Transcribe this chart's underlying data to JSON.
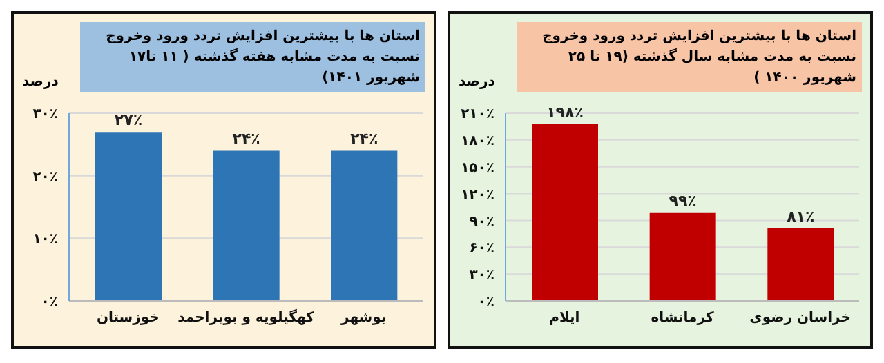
{
  "chart_data": [
    {
      "type": "bar",
      "title": "استان ها با بیشترین افزایش تردد ورود وخروج نسبت به مدت مشابه هفته گذشته ( ۱۱ تا۱۷ شهریور ۱۴۰۱)",
      "ylabel": "درصد",
      "categories": [
        "خوزستان",
        "کهگیلویه و بویراحمد",
        "بوشهر"
      ],
      "values": [
        27,
        24,
        24
      ],
      "value_labels": [
        "۲۷٪",
        "۲۴٪",
        "۲۴٪"
      ],
      "color": "#2e75b6",
      "ylim": [
        0,
        30
      ],
      "yticks": [
        {
          "value": 0,
          "label": "۰٪"
        },
        {
          "value": 10,
          "label": "۱۰٪"
        },
        {
          "value": 20,
          "label": "۲۰٪"
        },
        {
          "value": 30,
          "label": "۳۰٪"
        }
      ],
      "grid": "y"
    },
    {
      "type": "bar",
      "title": "استان ها با بیشترین افزایش تردد ورود وخروج نسبت به مدت مشابه سال گذشته (۱۹ تا ۲۵ شهریور ۱۴۰۰ )",
      "ylabel": "درصد",
      "categories": [
        "ایلام",
        "کرمانشاه",
        "خراسان رضوی"
      ],
      "values": [
        198,
        99,
        81
      ],
      "value_labels": [
        "۱۹۸٪",
        "۹۹٪",
        "۸۱٪"
      ],
      "color": "#c00000",
      "ylim": [
        0,
        210
      ],
      "yticks": [
        {
          "value": 0,
          "label": "۰٪"
        },
        {
          "value": 30,
          "label": "۳۰٪"
        },
        {
          "value": 60,
          "label": "۶۰٪"
        },
        {
          "value": 90,
          "label": "۹۰٪"
        },
        {
          "value": 120,
          "label": "۱۲۰٪"
        },
        {
          "value": 150,
          "label": "۱۵۰٪"
        },
        {
          "value": 180,
          "label": "۱۸۰٪"
        },
        {
          "value": 210,
          "label": "۲۱۰٪"
        }
      ],
      "grid": "y"
    }
  ]
}
